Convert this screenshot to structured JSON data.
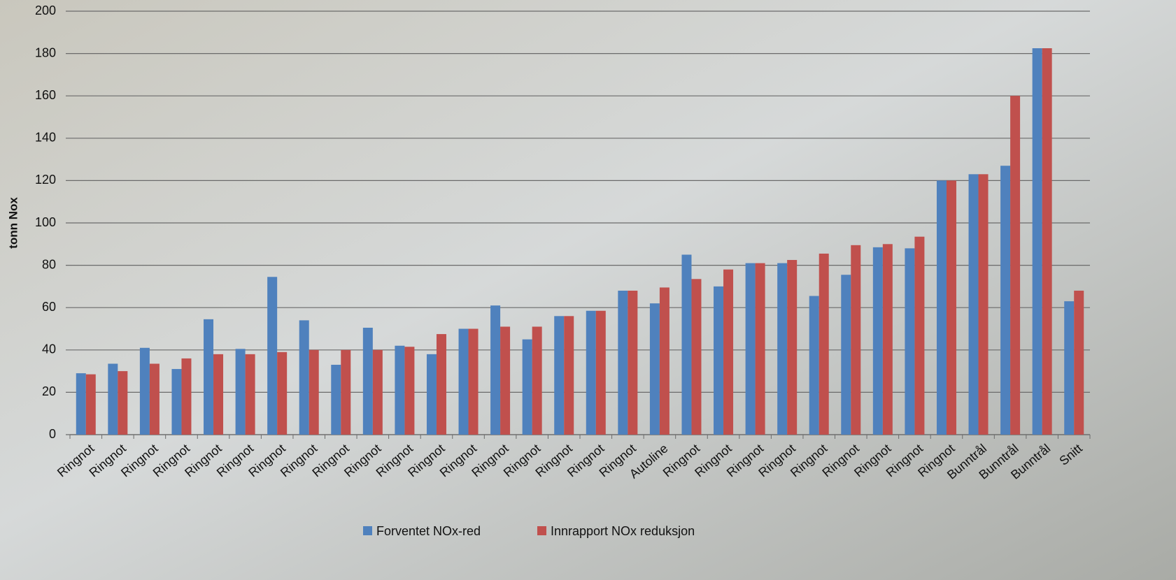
{
  "chart_data": {
    "type": "bar",
    "y_label": "tonn Nox",
    "categories": [
      "Ringnot",
      "Ringnot",
      "Ringnot",
      "Ringnot",
      "Ringnot",
      "Ringnot",
      "Ringnot",
      "Ringnot",
      "Ringnot",
      "Ringnot",
      "Ringnot",
      "Ringnot",
      "Ringnot",
      "Ringnot",
      "Ringnot",
      "Ringnot",
      "Ringnot",
      "Ringnot",
      "Autoline",
      "Ringnot",
      "Ringnot",
      "Ringnot",
      "Ringnot",
      "Ringnot",
      "Ringnot",
      "Ringnot",
      "Ringnot",
      "Ringnot",
      "Bunntrål",
      "Bunntrål",
      "Bunntrål",
      "Snitt"
    ],
    "series": [
      {
        "name": "Forventet NOx-red",
        "color": "#4f81bd",
        "values": [
          29,
          33.5,
          41,
          31,
          54.5,
          40.5,
          74.5,
          54,
          33,
          50.5,
          42,
          38,
          50,
          61,
          45,
          56,
          58.5,
          68,
          62,
          85,
          70,
          81,
          81,
          65.5,
          75.5,
          88.5,
          88,
          120,
          123,
          127,
          182.5,
          63
        ]
      },
      {
        "name": "Innrapport NOx reduksjon",
        "color": "#c0504d",
        "values": [
          28.5,
          30,
          33.5,
          36,
          38,
          38,
          39,
          40,
          40,
          40,
          41.5,
          47.5,
          50,
          51,
          51,
          56,
          58.5,
          68,
          69.5,
          73.5,
          78,
          81,
          82.5,
          85.5,
          89.5,
          90,
          93.5,
          120,
          123,
          160,
          182.5,
          68
        ]
      }
    ],
    "ylim": [
      0,
      200
    ],
    "yticks": [
      0,
      20,
      40,
      60,
      80,
      100,
      120,
      140,
      160,
      180,
      200
    ],
    "grid": true,
    "legend": "bottom"
  }
}
